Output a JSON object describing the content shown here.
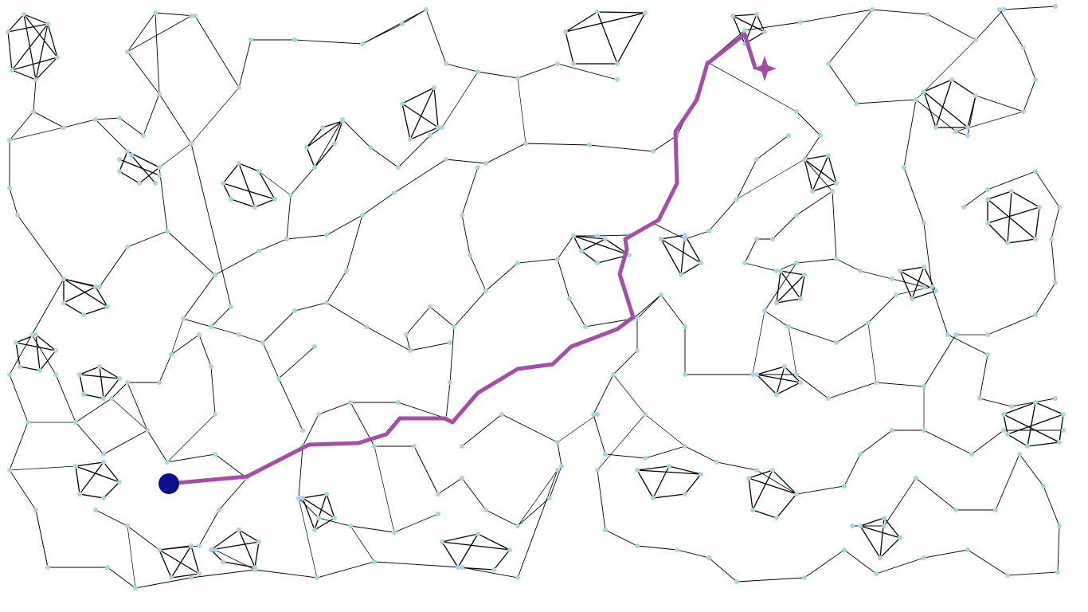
{
  "colors": {
    "background": "#ffffff",
    "edge": "#000000",
    "node": "#a9d4e3",
    "path": "#a34fa8",
    "start_marker": "#0b0f8a",
    "goal_marker": "#a34fa8"
  },
  "markers": {
    "start": "filled-circle",
    "goal": "four-point-star"
  }
}
